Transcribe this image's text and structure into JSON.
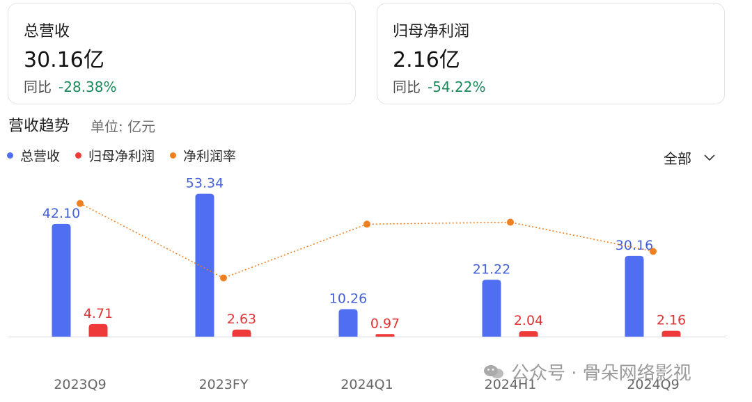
{
  "cards": [
    {
      "title": "总营收",
      "value": "30.16亿",
      "yoy_label": "同比",
      "yoy_value": "-28.38%"
    },
    {
      "title": "归母净利润",
      "value": "2.16亿",
      "yoy_label": "同比",
      "yoy_value": "-54.22%"
    }
  ],
  "section": {
    "title": "营收趋势",
    "unit": "单位: 亿元"
  },
  "filter": {
    "label": "全部"
  },
  "watermark": {
    "text": "公众号 · 骨朵网络影视"
  },
  "colors": {
    "revenue": "#4f6ef2",
    "profit": "#ef3a3a",
    "margin": "#f0801f",
    "positive_green": "#1a8a5a"
  },
  "chart_data": {
    "type": "bar",
    "categories": [
      "2023Q9",
      "2023FY",
      "2024Q1",
      "2024H1",
      "2024Q9"
    ],
    "series": [
      {
        "name": "总营收",
        "kind": "bar",
        "values": [
          42.1,
          53.34,
          10.26,
          21.22,
          30.16
        ],
        "labels": [
          "42.10",
          "53.34",
          "10.26",
          "21.22",
          "30.16"
        ]
      },
      {
        "name": "归母净利润",
        "kind": "bar",
        "values": [
          4.71,
          2.63,
          0.97,
          2.04,
          2.16
        ],
        "labels": [
          "4.71",
          "2.63",
          "0.97",
          "2.04",
          "2.16"
        ]
      },
      {
        "name": "净利润率",
        "kind": "line",
        "values": [
          11.19,
          4.93,
          9.45,
          9.61,
          7.16
        ]
      }
    ],
    "ylim": [
      0,
      60
    ],
    "line_ylim": [
      0,
      13.5
    ],
    "legend_position": "top-left",
    "grid": false
  }
}
